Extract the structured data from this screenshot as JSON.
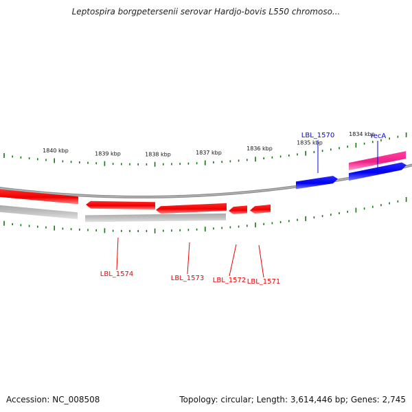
{
  "title": "Leptospira borgpetersenii serovar Hardjo-bovis L550 chromoso...",
  "footer": {
    "accession": "Accession: NC_008508",
    "topology": "Topology: circular; Length: 3,614,446 bp; Genes: 2,745"
  },
  "colors": {
    "forward_gene": "#0000ee",
    "reverse_gene": "#ee0000",
    "rrna": "#ee2288",
    "backbone": "#888888",
    "ticks": "#117711",
    "reverse_track_shadow": "#bbbbbb"
  },
  "scale": {
    "unit": "kbp",
    "labels": [
      "1840 kbp",
      "1839 kbp",
      "1838 kbp",
      "1837 kbp",
      "1836 kbp",
      "1835 kbp",
      "1834 kbp"
    ]
  },
  "genes": [
    {
      "name": "LBL_1570",
      "strand": "+",
      "type": "gene"
    },
    {
      "name": "recA",
      "strand": "+",
      "type": "gene"
    },
    {
      "name": "LBL_1571",
      "strand": "-",
      "type": "gene"
    },
    {
      "name": "LBL_1572",
      "strand": "-",
      "type": "gene"
    },
    {
      "name": "LBL_1573",
      "strand": "-",
      "type": "gene"
    },
    {
      "name": "LBL_1574",
      "strand": "-",
      "type": "gene"
    }
  ]
}
